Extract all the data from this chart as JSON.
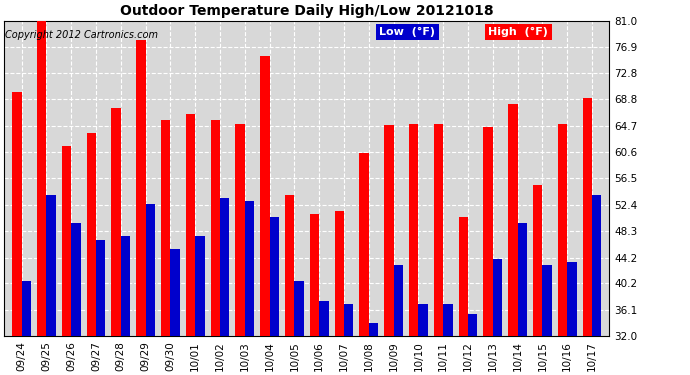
{
  "title": "Outdoor Temperature Daily High/Low 20121018",
  "copyright": "Copyright 2012 Cartronics.com",
  "legend_low": "Low  (°F)",
  "legend_high": "High  (°F)",
  "categories": [
    "09/24",
    "09/25",
    "09/26",
    "09/27",
    "09/28",
    "09/29",
    "09/30",
    "10/01",
    "10/02",
    "10/03",
    "10/04",
    "10/05",
    "10/06",
    "10/07",
    "10/08",
    "10/09",
    "10/10",
    "10/11",
    "10/12",
    "10/13",
    "10/14",
    "10/15",
    "10/16",
    "10/17"
  ],
  "high": [
    70.0,
    81.0,
    61.5,
    63.5,
    67.5,
    78.0,
    65.5,
    66.5,
    65.5,
    65.0,
    75.5,
    54.0,
    51.0,
    51.5,
    60.5,
    64.8,
    65.0,
    65.0,
    50.5,
    64.5,
    68.0,
    55.5,
    65.0,
    69.0
  ],
  "low": [
    40.5,
    54.0,
    49.5,
    47.0,
    47.5,
    52.5,
    45.5,
    47.5,
    53.5,
    53.0,
    50.5,
    40.5,
    37.5,
    37.0,
    34.0,
    43.0,
    37.0,
    37.0,
    35.5,
    44.0,
    49.5,
    43.0,
    43.5,
    54.0
  ],
  "ylim_min": 32.0,
  "ylim_max": 81.0,
  "yticks": [
    32.0,
    36.1,
    40.2,
    44.2,
    48.3,
    52.4,
    56.5,
    60.6,
    64.7,
    68.8,
    72.8,
    76.9,
    81.0
  ],
  "high_color": "#ff0000",
  "low_color": "#0000cc",
  "bg_color": "#ffffff",
  "plot_bg_color": "#d8d8d8",
  "grid_color": "#ffffff",
  "bar_width": 0.38,
  "title_fontsize": 10,
  "tick_fontsize": 7.5,
  "copyright_fontsize": 7
}
